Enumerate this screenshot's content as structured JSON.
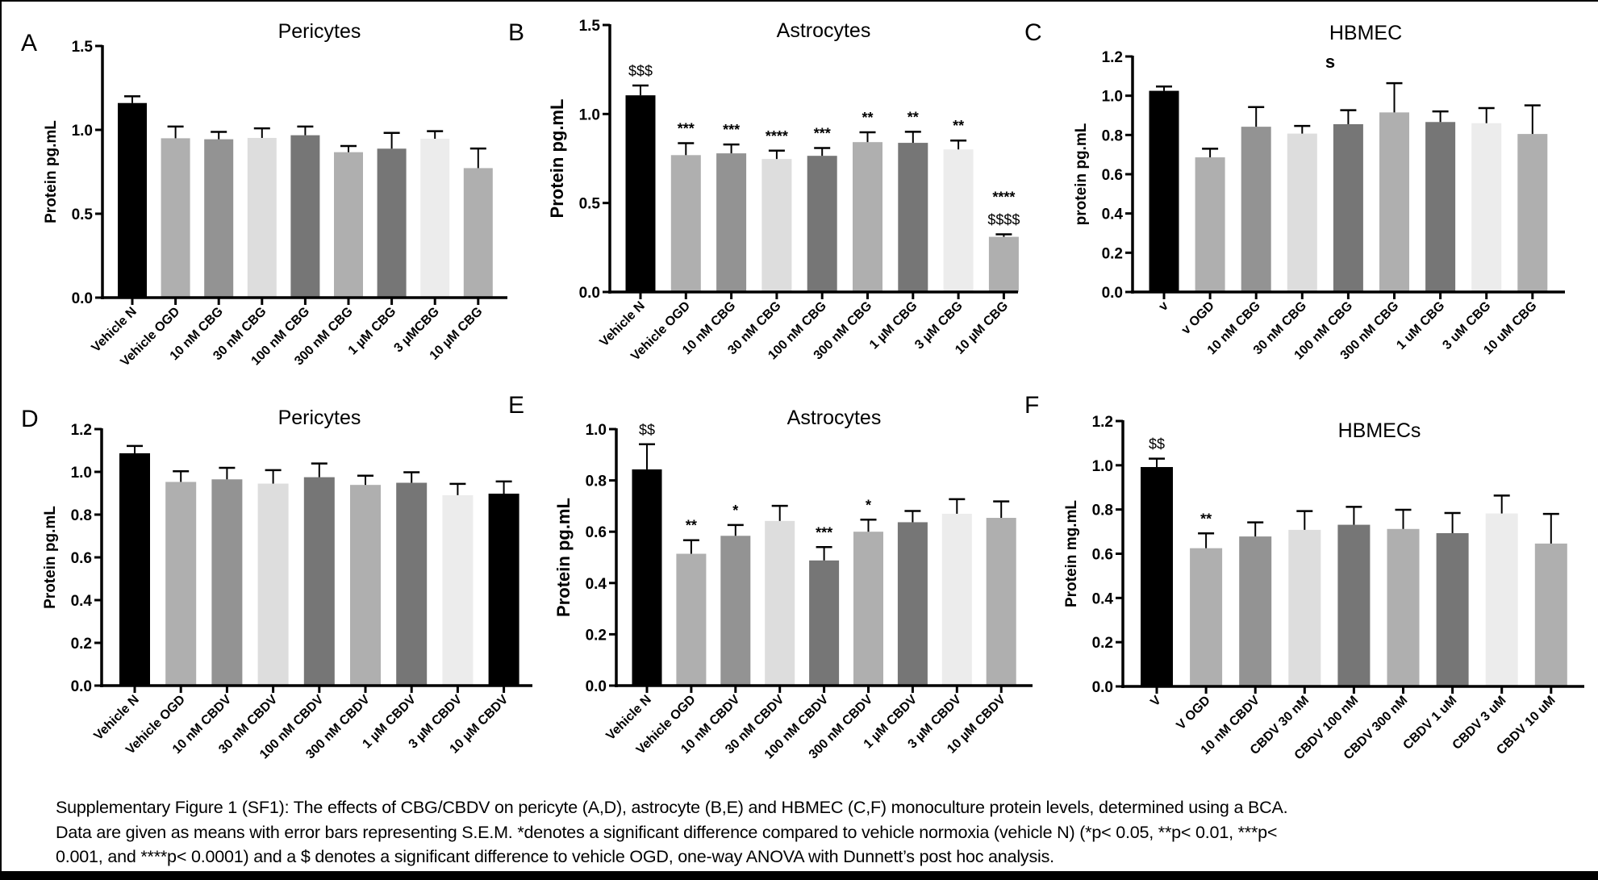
{
  "chart_data": [
    {
      "type": "bar",
      "panel_letter": "A",
      "title": "Pericytes",
      "ylabel": "Protein pg.mL",
      "xlabel": "",
      "ylim": [
        0,
        1.5
      ],
      "yticks": [
        "0.0",
        "0.5",
        "1.0",
        "1.5"
      ],
      "ytick_values": [
        0,
        0.5,
        1.0,
        1.5
      ],
      "categories": [
        "Vehicle N",
        "Vehicle OGD",
        "10 nM CBG",
        "30 nM CBG",
        "100 nM CBG",
        "300 nM CBG",
        "1 µM CBG",
        "3 µMCBG",
        "10 µM CBG"
      ],
      "values": [
        1.16,
        0.95,
        0.944,
        0.952,
        0.968,
        0.867,
        0.888,
        0.947,
        0.772
      ],
      "sem": [
        0.04,
        0.07,
        0.044,
        0.057,
        0.052,
        0.037,
        0.094,
        0.045,
        0.117
      ],
      "annotations": [
        [],
        [],
        [],
        [],
        [],
        [],
        [],
        [],
        []
      ],
      "colors": [
        "#000000",
        "#afafaf",
        "#939393",
        "#dddddd",
        "#767676",
        "#afafaf",
        "#767676",
        "#ececec",
        "#afafaf"
      ]
    },
    {
      "type": "bar",
      "panel_letter": "B",
      "title": "Astrocytes",
      "ylabel": "Protein pg.mL",
      "xlabel": "",
      "ylim": [
        0,
        1.5
      ],
      "yticks": [
        "0.0",
        "0.5",
        "1.0",
        "1.5"
      ],
      "ytick_values": [
        0,
        0.5,
        1.0,
        1.5
      ],
      "categories": [
        "Vehicle N",
        "Vehicle OGD",
        "10 nM CBG",
        "30 nM CBG",
        "100 nM CBG",
        "300 nM CBG",
        "1 µM CBG",
        "3 µM CBG",
        "10 µM CBG"
      ],
      "values": [
        1.105,
        0.769,
        0.779,
        0.747,
        0.765,
        0.842,
        0.838,
        0.801,
        0.31
      ],
      "sem": [
        0.055,
        0.067,
        0.05,
        0.047,
        0.044,
        0.055,
        0.062,
        0.05,
        0.014
      ],
      "annotations": [
        [
          "$$$"
        ],
        [
          "***"
        ],
        [
          "***"
        ],
        [
          "****"
        ],
        [
          "***"
        ],
        [
          "**"
        ],
        [
          "**"
        ],
        [
          "**"
        ],
        [
          "$$$$",
          "****"
        ]
      ],
      "colors": [
        "#000000",
        "#afafaf",
        "#939393",
        "#dddddd",
        "#767676",
        "#afafaf",
        "#767676",
        "#ececec",
        "#afafaf"
      ]
    },
    {
      "type": "bar",
      "panel_letter": "C",
      "title": "HBMEC",
      "title_line2": "s",
      "ylabel": "protein pg.mL",
      "xlabel": "",
      "ylim": [
        0,
        1.2
      ],
      "yticks": [
        "0.0",
        "0.2",
        "0.4",
        "0.6",
        "0.8",
        "1.0",
        "1.2"
      ],
      "ytick_values": [
        0,
        0.2,
        0.4,
        0.6,
        0.8,
        1.0,
        1.2
      ],
      "categories": [
        "v",
        "v OGD",
        "10 nM CBG",
        "30 nM CBG",
        "100 nM CBG",
        "300 nM CBG",
        "1 uM CBG",
        "3 uM CBG",
        "10 uM CBG"
      ],
      "values": [
        1.025,
        0.686,
        0.842,
        0.807,
        0.855,
        0.915,
        0.866,
        0.86,
        0.805
      ],
      "sem": [
        0.022,
        0.044,
        0.1,
        0.039,
        0.071,
        0.149,
        0.054,
        0.077,
        0.146
      ],
      "annotations": [
        [],
        [],
        [],
        [],
        [],
        [],
        [],
        [],
        []
      ],
      "colors": [
        "#000000",
        "#afafaf",
        "#939393",
        "#dddddd",
        "#767676",
        "#afafaf",
        "#767676",
        "#ececec",
        "#afafaf"
      ]
    },
    {
      "type": "bar",
      "panel_letter": "D",
      "title": "Pericytes",
      "ylabel": "Protein pg.mL",
      "xlabel": "",
      "ylim": [
        0,
        1.2
      ],
      "yticks": [
        "0.0",
        "0.2",
        "0.4",
        "0.6",
        "0.8",
        "1.0",
        "1.2"
      ],
      "ytick_values": [
        0,
        0.2,
        0.4,
        0.6,
        0.8,
        1.0,
        1.2
      ],
      "categories": [
        "Vehicle N",
        "Vehicle OGD",
        "10 nM CBDV",
        "30 nM CBDV",
        "100 nM CBDV",
        "300 nM CBDV",
        "1 µM CBDV",
        "3 µM CBDV",
        "10 µM CBDV"
      ],
      "values": [
        1.087,
        0.953,
        0.965,
        0.945,
        0.975,
        0.939,
        0.949,
        0.891,
        0.898
      ],
      "sem": [
        0.034,
        0.05,
        0.054,
        0.063,
        0.064,
        0.043,
        0.049,
        0.053,
        0.057
      ],
      "annotations": [
        [],
        [],
        [],
        [],
        [],
        [],
        [],
        [],
        []
      ],
      "colors": [
        "#000000",
        "#afafaf",
        "#939393",
        "#dddddd",
        "#767676",
        "#afafaf",
        "#767676",
        "#ececec",
        "#000000"
      ]
    },
    {
      "type": "bar",
      "panel_letter": "E",
      "title": "Astrocytes",
      "ylabel": "Protein pg.mL",
      "xlabel": "",
      "ylim": [
        0,
        1.0
      ],
      "yticks": [
        "0.0",
        "0.2",
        "0.4",
        "0.6",
        "0.8",
        "1.0"
      ],
      "ytick_values": [
        0,
        0.2,
        0.4,
        0.6,
        0.8,
        1.0
      ],
      "categories": [
        "Vehicle N",
        "Vehicle OGD",
        "10 nM CBDV",
        "30 nM CBDV",
        "100 nM CBDV",
        "300 nM CBDV",
        "1 µM CBDV",
        "3 µM CBDV",
        "10 µM CBDV"
      ],
      "values": [
        0.843,
        0.514,
        0.584,
        0.642,
        0.488,
        0.6,
        0.637,
        0.67,
        0.654
      ],
      "sem": [
        0.098,
        0.053,
        0.042,
        0.059,
        0.052,
        0.047,
        0.044,
        0.057,
        0.064
      ],
      "annotations": [
        [
          "$$"
        ],
        [
          "**"
        ],
        [
          "*"
        ],
        [],
        [
          "***"
        ],
        [
          "*"
        ],
        [],
        [],
        []
      ],
      "colors": [
        "#000000",
        "#afafaf",
        "#939393",
        "#dddddd",
        "#767676",
        "#afafaf",
        "#767676",
        "#ececec",
        "#afafaf"
      ]
    },
    {
      "type": "bar",
      "panel_letter": "F",
      "title": "HBMECs",
      "ylabel": "Protein mg.mL",
      "xlabel": "",
      "ylim": [
        0,
        1.2
      ],
      "yticks": [
        "0.0",
        "0.2",
        "0.4",
        "0.6",
        "0.8",
        "1.0",
        "1.2"
      ],
      "ytick_values": [
        0,
        0.2,
        0.4,
        0.6,
        0.8,
        1.0,
        1.2
      ],
      "categories": [
        "V",
        "V OGD",
        "10 nM CBDV",
        "CBDV 30 nM",
        "CBDV 100 nM",
        "CBDV 300 nM",
        "CBDV 1 uM",
        "CBDV 3 uM",
        "CBDV 10 uM"
      ],
      "values": [
        0.992,
        0.625,
        0.678,
        0.708,
        0.731,
        0.712,
        0.693,
        0.782,
        0.646
      ],
      "sem": [
        0.038,
        0.067,
        0.064,
        0.085,
        0.081,
        0.087,
        0.091,
        0.081,
        0.134
      ],
      "annotations": [
        [
          "$$"
        ],
        [
          "**"
        ],
        [],
        [],
        [],
        [],
        [],
        [],
        []
      ],
      "colors": [
        "#000000",
        "#afafaf",
        "#939393",
        "#dddddd",
        "#767676",
        "#afafaf",
        "#767676",
        "#ececec",
        "#afafaf"
      ]
    }
  ],
  "caption": {
    "lines": [
      "Supplementary Figure 1 (SF1): The effects of CBG/CBDV on pericyte (A,D), astrocyte (B,E) and HBMEC (C,F) monoculture protein levels, determined using a BCA.",
      "Data are given as means with error bars representing S.E.M. *denotes a significant difference compared to vehicle normoxia (vehicle N) (*p< 0.05, **p< 0.01, ***p<",
      "0.001, and ****p< 0.0001) and a $ denotes a significant difference to vehicle OGD, one-way ANOVA with Dunnett’s post hoc analysis."
    ]
  }
}
